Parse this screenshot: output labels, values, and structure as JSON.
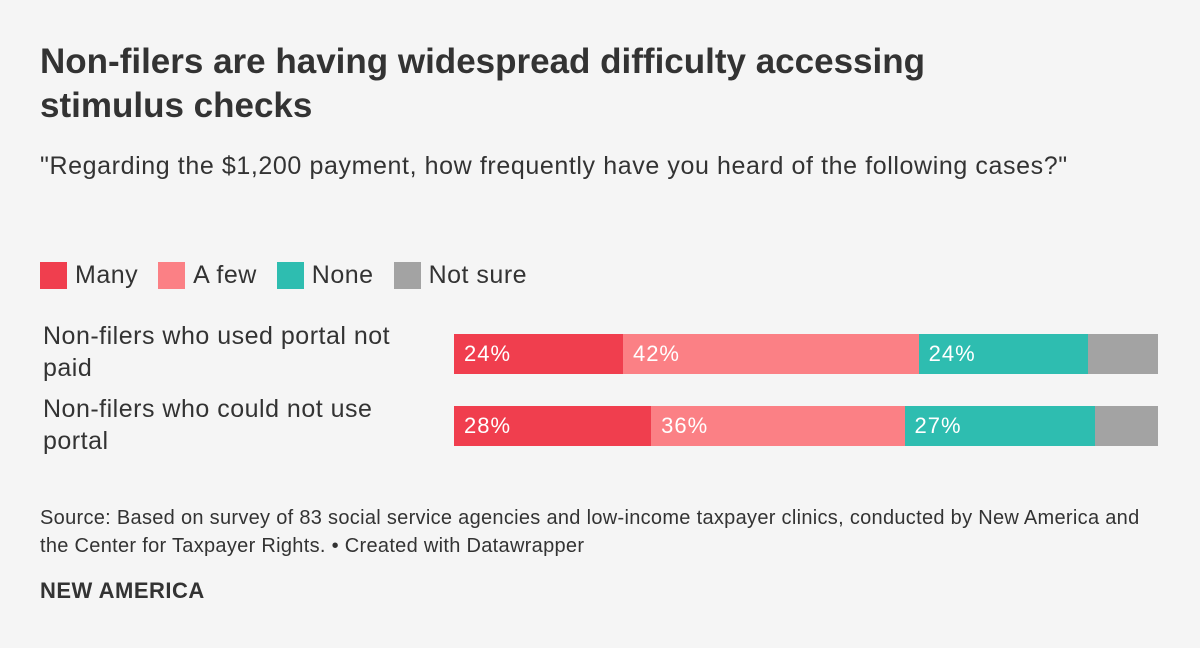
{
  "chart_data": {
    "type": "bar",
    "orientation": "horizontal-stacked",
    "title": "Non-filers are having widespread difficulty accessing stimulus checks",
    "subtitle": "\"Regarding the $1,200 payment, how frequently have you heard of the following cases?\"",
    "categories": [
      "Non-filers who used portal not paid",
      "Non-filers who could not use portal"
    ],
    "series": [
      {
        "name": "Many",
        "color": "#f03e4e",
        "values": [
          24,
          28
        ],
        "labels": [
          "24%",
          "28%"
        ]
      },
      {
        "name": "A few",
        "color": "#fb8085",
        "values": [
          42,
          36
        ],
        "labels": [
          "42%",
          "36%"
        ]
      },
      {
        "name": "None",
        "color": "#2ebdb0",
        "values": [
          24,
          27
        ],
        "labels": [
          "24%",
          "27%"
        ]
      },
      {
        "name": "Not sure",
        "color": "#a3a3a3",
        "values": [
          10,
          9
        ],
        "labels": [
          "",
          ""
        ]
      }
    ],
    "xlim": [
      0,
      100
    ],
    "legend_position": "top-left"
  },
  "footer": {
    "source": "Source: Based on survey of 83 social service agencies and low-income taxpayer clinics, conducted by New America and the Center for Taxpayer Rights.",
    "credit": " • Created with Datawrapper",
    "brand": "NEW AMERICA"
  }
}
